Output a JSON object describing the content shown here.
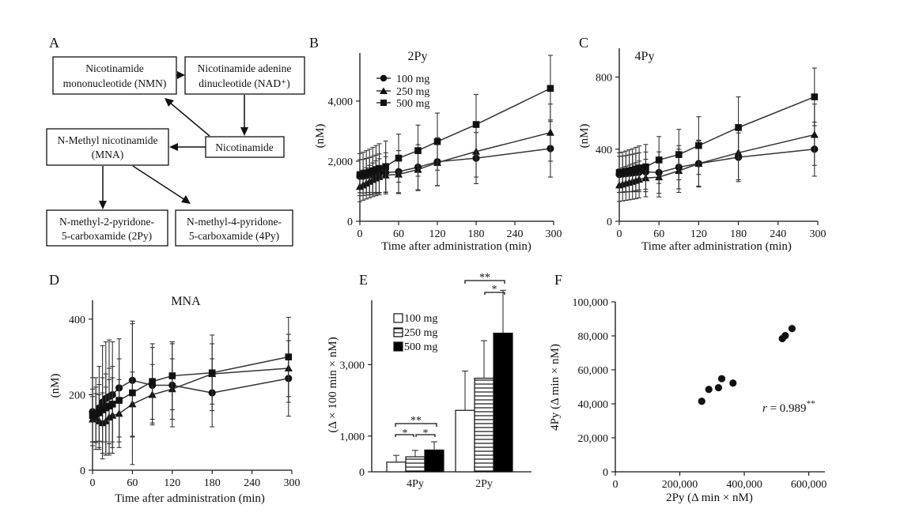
{
  "panel_a": {
    "label": "A",
    "boxes": {
      "nmn": [
        "Nicotinamide",
        "mononucleotide (NMN)"
      ],
      "nad": [
        "Nicotinamide adenine",
        "dinucleotide (NAD⁺)"
      ],
      "nic": [
        "Nicotinamide"
      ],
      "mna": [
        "N-Methyl nicotinamide",
        "(MNA)"
      ],
      "py2": [
        "N-methyl-2-pyridone-",
        "5-carboxamide (2Py)"
      ],
      "py4": [
        "N-methyl-4-pyridone-",
        "5-carboxamide (4Py)"
      ]
    }
  },
  "panel_labels": {
    "b": "B",
    "c": "C",
    "d": "D",
    "e": "E",
    "f": "F"
  },
  "legend": {
    "dose_100": "100 mg",
    "dose_250": "250 mg",
    "dose_500": "500 mg"
  },
  "colors": {
    "ink": "#111111",
    "line": "#333333",
    "bar_100": "#ffffff",
    "bar_250": "hatched-horizontal",
    "bar_500": "#000000"
  },
  "chart_data": [
    {
      "panel": "B",
      "type": "line",
      "title": "2Py",
      "xlabel": "Time after administration (min)",
      "ylabel": "(nM)",
      "xlim": [
        0,
        300
      ],
      "ylim": [
        0,
        5600
      ],
      "xticks": [
        0,
        60,
        120,
        180,
        240,
        300
      ],
      "yticks": [
        0,
        2000,
        4000
      ],
      "ytick_labels": [
        "0",
        "2,000",
        "4,000"
      ],
      "legend_position": "top-left",
      "series": [
        {
          "name": "100 mg",
          "marker": "circle",
          "x": [
            0,
            5,
            10,
            15,
            20,
            25,
            30,
            40,
            60,
            90,
            120,
            180,
            295
          ],
          "y": [
            1500,
            1500,
            1520,
            1540,
            1560,
            1580,
            1600,
            1620,
            1650,
            1800,
            1980,
            2100,
            2420
          ],
          "err": [
            550,
            560,
            570,
            580,
            600,
            620,
            640,
            660,
            700,
            750,
            800,
            850,
            950
          ]
        },
        {
          "name": "250 mg",
          "marker": "triangle",
          "x": [
            0,
            5,
            10,
            15,
            20,
            25,
            30,
            40,
            60,
            90,
            120,
            180,
            295
          ],
          "y": [
            1150,
            1200,
            1260,
            1320,
            1380,
            1430,
            1480,
            1530,
            1560,
            1720,
            1950,
            2320,
            2950
          ],
          "err": [
            500,
            500,
            520,
            540,
            560,
            580,
            600,
            620,
            640,
            700,
            760,
            850,
            950
          ]
        },
        {
          "name": "500 mg",
          "marker": "square",
          "x": [
            0,
            5,
            10,
            15,
            20,
            25,
            30,
            40,
            60,
            90,
            120,
            180,
            295
          ],
          "y": [
            1550,
            1580,
            1610,
            1640,
            1680,
            1720,
            1760,
            1820,
            2100,
            2350,
            2650,
            3220,
            4420
          ],
          "err": [
            700,
            720,
            740,
            760,
            780,
            800,
            820,
            850,
            800,
            850,
            950,
            1000,
            1100
          ]
        }
      ]
    },
    {
      "panel": "C",
      "type": "line",
      "title": "4Py",
      "xlabel": "Time after administration (min)",
      "ylabel": "(nM)",
      "xlim": [
        0,
        300
      ],
      "ylim": [
        0,
        960
      ],
      "xticks": [
        0,
        60,
        120,
        180,
        240,
        300
      ],
      "yticks": [
        0,
        400,
        800
      ],
      "ytick_labels": [
        "0",
        "400",
        "800"
      ],
      "series": [
        {
          "name": "100 mg",
          "marker": "circle",
          "x": [
            0,
            5,
            10,
            15,
            20,
            25,
            30,
            40,
            60,
            90,
            120,
            180,
            295
          ],
          "y": [
            260,
            262,
            264,
            266,
            268,
            270,
            272,
            274,
            270,
            300,
            320,
            355,
            400
          ],
          "err": [
            100,
            100,
            100,
            102,
            104,
            106,
            108,
            110,
            115,
            120,
            125,
            135,
            150
          ]
        },
        {
          "name": "250 mg",
          "marker": "triangle",
          "x": [
            0,
            5,
            10,
            15,
            20,
            25,
            30,
            40,
            60,
            90,
            120,
            180,
            295
          ],
          "y": [
            200,
            205,
            210,
            215,
            220,
            225,
            232,
            240,
            245,
            280,
            320,
            380,
            480
          ],
          "err": [
            90,
            92,
            94,
            96,
            98,
            100,
            102,
            104,
            110,
            120,
            130,
            150,
            170
          ]
        },
        {
          "name": "500 mg",
          "marker": "square",
          "x": [
            0,
            5,
            10,
            15,
            20,
            25,
            30,
            40,
            60,
            90,
            120,
            180,
            295
          ],
          "y": [
            270,
            272,
            276,
            280,
            284,
            290,
            296,
            302,
            340,
            370,
            420,
            520,
            690
          ],
          "err": [
            110,
            112,
            114,
            116,
            118,
            120,
            122,
            124,
            130,
            140,
            160,
            170,
            160
          ]
        }
      ]
    },
    {
      "panel": "D",
      "type": "line",
      "title": "MNA",
      "xlabel": "Time after administration (min)",
      "ylabel": "(nM)",
      "xlim": [
        0,
        300
      ],
      "ylim": [
        0,
        450
      ],
      "xticks": [
        0,
        60,
        120,
        180,
        240,
        300
      ],
      "yticks": [
        0,
        200,
        400
      ],
      "ytick_labels": [
        "0",
        "200",
        "400"
      ],
      "series": [
        {
          "name": "100 mg",
          "marker": "circle",
          "x": [
            0,
            5,
            10,
            15,
            20,
            25,
            30,
            40,
            60,
            90,
            120,
            180,
            295
          ],
          "y": [
            155,
            150,
            165,
            180,
            190,
            195,
            200,
            218,
            238,
            225,
            225,
            205,
            243
          ],
          "err": [
            90,
            95,
            110,
            150,
            150,
            150,
            140,
            130,
            150,
            100,
            110,
            90,
            100
          ]
        },
        {
          "name": "250 mg",
          "marker": "triangle",
          "x": [
            0,
            5,
            10,
            15,
            20,
            25,
            30,
            40,
            60,
            90,
            120,
            180,
            295
          ],
          "y": [
            135,
            138,
            130,
            125,
            130,
            140,
            145,
            150,
            175,
            200,
            215,
            255,
            270
          ],
          "err": [
            60,
            65,
            70,
            80,
            90,
            100,
            100,
            90,
            85,
            80,
            80,
            80,
            90
          ]
        },
        {
          "name": "500 mg",
          "marker": "square",
          "x": [
            0,
            5,
            10,
            15,
            20,
            25,
            30,
            40,
            60,
            90,
            120,
            180,
            295
          ],
          "y": [
            145,
            148,
            152,
            160,
            165,
            170,
            175,
            185,
            205,
            235,
            250,
            258,
            300
          ],
          "err": [
            70,
            72,
            75,
            85,
            90,
            100,
            100,
            110,
            190,
            100,
            90,
            100,
            105
          ]
        }
      ]
    },
    {
      "panel": "E",
      "type": "bar",
      "ylabel": "(Δ × 100  min × nM)",
      "categories": [
        "4Py",
        "2Py"
      ],
      "ylim": [
        0,
        4800
      ],
      "yticks": [
        0,
        1000,
        3000
      ],
      "ytick_labels": [
        "0",
        "1,000",
        "3,000"
      ],
      "series": [
        {
          "name": "100 mg",
          "values": [
            270,
            1720
          ],
          "err": [
            190,
            1100
          ]
        },
        {
          "name": "250 mg",
          "values": [
            420,
            2620
          ],
          "err": [
            180,
            1050
          ]
        },
        {
          "name": "500 mg",
          "values": [
            610,
            3880
          ],
          "err": [
            230,
            1200
          ]
        }
      ],
      "significance": {
        "double_star": "**",
        "single_star": "*"
      }
    },
    {
      "panel": "F",
      "type": "scatter",
      "xlabel": "2Py (Δ min × nM)",
      "ylabel": "4Py (Δ min × nM)",
      "xlim": [
        0,
        650000
      ],
      "ylim": [
        0,
        100000
      ],
      "xticks": [
        0,
        200000,
        400000,
        600000
      ],
      "xtick_labels": [
        "0",
        "200,000",
        "400,000",
        "600,000"
      ],
      "yticks": [
        0,
        20000,
        40000,
        60000,
        80000,
        100000
      ],
      "ytick_labels": [
        "0",
        "20,000",
        "40,000",
        "60,000",
        "80,000",
        "100,000"
      ],
      "x": [
        268000,
        290000,
        320000,
        330000,
        365000,
        518000,
        527000,
        548000
      ],
      "y": [
        41500,
        48500,
        49500,
        54800,
        52200,
        78400,
        80200,
        84300
      ],
      "annotation": {
        "r_label": "r",
        "r_value": " = 0.989",
        "sig": "**"
      }
    }
  ]
}
